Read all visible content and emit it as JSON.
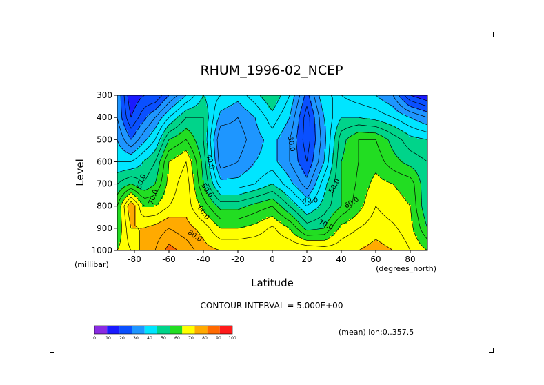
{
  "chart_data": {
    "type": "contour",
    "title": "RHUM_1996-02_NCEP",
    "xlabel": "Latitude",
    "ylabel": "Level",
    "x_unit": "(degrees_north)",
    "y_unit": "(millibar)",
    "xlim": [
      -90,
      90
    ],
    "ylim": [
      1000,
      300
    ],
    "x_ticks": [
      -80,
      -60,
      -40,
      -20,
      0,
      20,
      40,
      60,
      80
    ],
    "x_tick_labels": [
      "-80",
      "-60",
      "-40",
      "-20",
      "0",
      "20",
      "40",
      "60",
      "80"
    ],
    "y_ticks": [
      300,
      400,
      500,
      600,
      700,
      800,
      900,
      1000
    ],
    "y_tick_labels": [
      "300",
      "400",
      "500",
      "600",
      "700",
      "800",
      "900",
      "1000"
    ],
    "contour_interval_text": "CONTOUR INTERVAL = 5.000E+00",
    "mean_text": "(mean) lon:0..357.5",
    "contour_labels": [
      {
        "text": "50.0",
        "lat": -76,
        "lev": 690,
        "rot": -70
      },
      {
        "text": "70.0",
        "lat": -69,
        "lev": 760,
        "rot": -70
      },
      {
        "text": "80.0",
        "lat": -45,
        "lev": 935,
        "rot": 35
      },
      {
        "text": "60.0",
        "lat": -40,
        "lev": 830,
        "rot": 55
      },
      {
        "text": "50.0",
        "lat": -38,
        "lev": 730,
        "rot": 60
      },
      {
        "text": "40.0",
        "lat": -36,
        "lev": 600,
        "rot": 75
      },
      {
        "text": "30.0",
        "lat": 11,
        "lev": 520,
        "rot": 80
      },
      {
        "text": "40.0",
        "lat": 22,
        "lev": 775,
        "rot": 0
      },
      {
        "text": "50.0",
        "lat": 36,
        "lev": 710,
        "rot": -60
      },
      {
        "text": "60.0",
        "lat": 46,
        "lev": 785,
        "rot": -30
      },
      {
        "text": "70.0",
        "lat": 31,
        "lev": 885,
        "rot": 25
      }
    ],
    "colorbar": {
      "ticks": [
        "0",
        "10",
        "20",
        "30",
        "40",
        "50",
        "60",
        "70",
        "80",
        "90",
        "100"
      ],
      "colors": [
        "#8a2be2",
        "#1a1aff",
        "#0a50ff",
        "#1e96ff",
        "#00e5ff",
        "#00d48a",
        "#22dd22",
        "#ffff00",
        "#ffaa00",
        "#ff6a00",
        "#ff1a1a"
      ]
    },
    "field": {
      "lats": [
        -90,
        -82,
        -75,
        -68,
        -60,
        -50,
        -40,
        -30,
        -20,
        -10,
        0,
        10,
        20,
        30,
        40,
        50,
        60,
        70,
        80,
        90
      ],
      "levels": [
        300,
        400,
        500,
        600,
        700,
        800,
        900,
        1000
      ],
      "values": [
        [
          35,
          15,
          20,
          20,
          30,
          40,
          50,
          45,
          42,
          48,
          55,
          45,
          28,
          45,
          45,
          42,
          40,
          35,
          20,
          15
        ],
        [
          35,
          20,
          28,
          35,
          45,
          55,
          55,
          38,
          35,
          40,
          48,
          40,
          22,
          40,
          50,
          50,
          48,
          45,
          40,
          35
        ],
        [
          40,
          30,
          38,
          45,
          60,
          65,
          55,
          30,
          32,
          38,
          42,
          35,
          22,
          38,
          58,
          65,
          65,
          58,
          52,
          50
        ],
        [
          45,
          45,
          50,
          55,
          70,
          75,
          58,
          32,
          35,
          40,
          42,
          35,
          25,
          40,
          60,
          65,
          68,
          62,
          58,
          55
        ],
        [
          55,
          60,
          55,
          60,
          72,
          78,
          60,
          42,
          42,
          45,
          50,
          42,
          32,
          48,
          60,
          66,
          72,
          70,
          68,
          55
        ],
        [
          65,
          85,
          70,
          70,
          75,
          78,
          68,
          58,
          58,
          62,
          65,
          55,
          45,
          52,
          60,
          68,
          75,
          72,
          70,
          55
        ],
        [
          65,
          80,
          80,
          82,
          85,
          82,
          78,
          70,
          70,
          72,
          76,
          70,
          58,
          60,
          72,
          75,
          78,
          76,
          72,
          60
        ],
        [
          70,
          75,
          82,
          85,
          92,
          88,
          82,
          80,
          80,
          80,
          80,
          80,
          80,
          78,
          78,
          80,
          82,
          80,
          75,
          70
        ]
      ]
    }
  }
}
